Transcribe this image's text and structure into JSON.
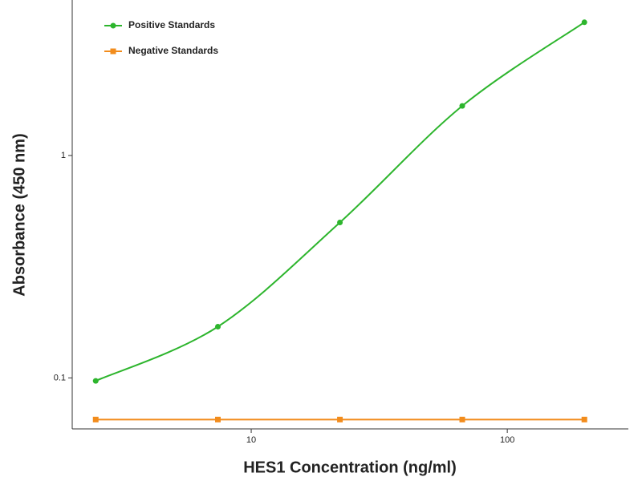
{
  "chart_data": {
    "type": "line",
    "xlabel": "HES1 Concentration (ng/ml)",
    "ylabel": "Absorbance (450 nm)",
    "x": [
      2.47,
      7.41,
      22.2,
      66.7,
      200
    ],
    "series": [
      {
        "name": "Positive Standards",
        "color": "#2db52d",
        "marker": "circle",
        "smooth": true,
        "values": [
          0.097,
          0.17,
          0.5,
          1.67,
          3.97
        ]
      },
      {
        "name": "Negative Standards",
        "color": "#f28c1c",
        "marker": "square",
        "smooth": false,
        "values": [
          0.065,
          0.065,
          0.065,
          0.065,
          0.065
        ]
      }
    ],
    "xscale": "log",
    "yscale": "log",
    "xlim": [
      2,
      297
    ],
    "ylim": [
      0.059,
      5
    ],
    "xticks": [
      10,
      100
    ],
    "yticks": [
      0.1,
      1
    ],
    "legend": "upper left",
    "grid": false
  }
}
